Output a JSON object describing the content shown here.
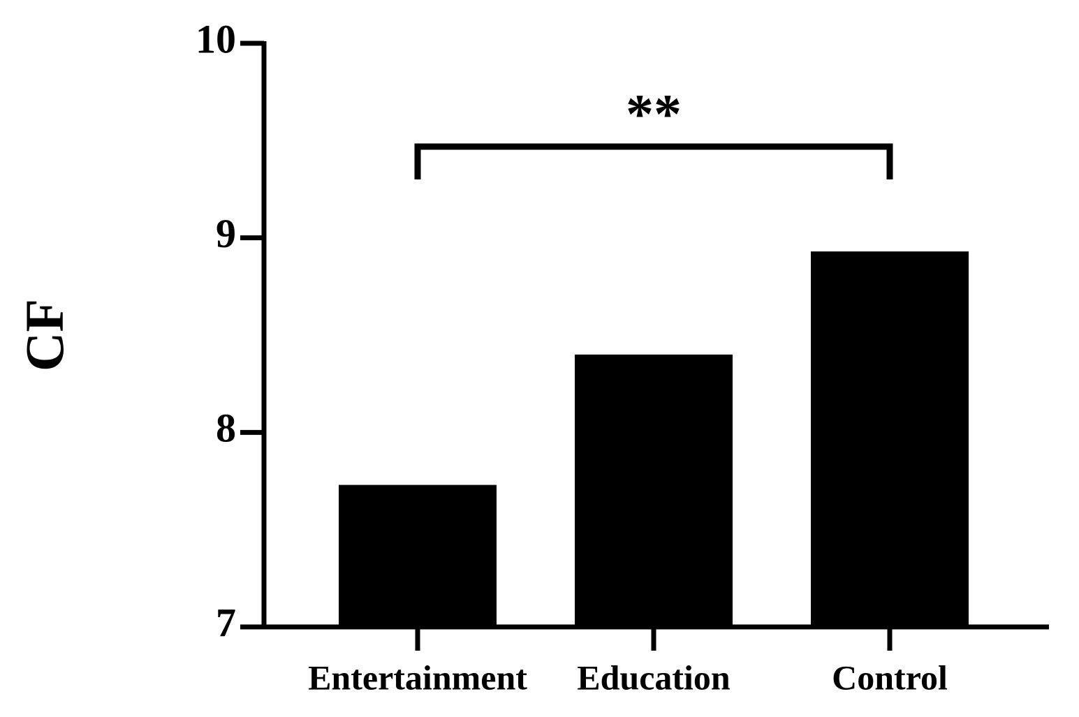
{
  "chart_data": {
    "type": "bar",
    "y_label": "CF",
    "categories": [
      "Entertainment",
      "Education",
      "Control"
    ],
    "values": [
      7.73,
      8.4,
      8.93
    ],
    "color": "#000000",
    "ylim": [
      7,
      10
    ],
    "yticks": [
      7,
      8,
      9,
      10
    ],
    "annotation": "**"
  }
}
